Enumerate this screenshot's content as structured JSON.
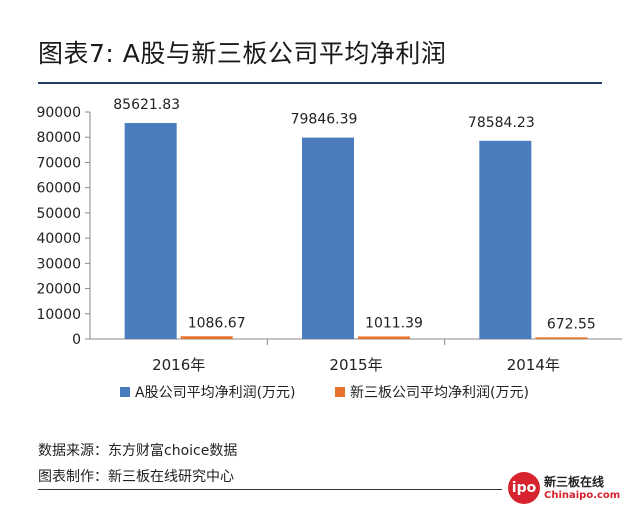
{
  "header": {
    "title": "图表7: A股与新三板公司平均净利润"
  },
  "chart_data": {
    "type": "bar",
    "categories": [
      "2016年",
      "2015年",
      "2014年"
    ],
    "series": [
      {
        "name": "A股公司平均净利润(万元)",
        "values": [
          85621.83,
          79846.39,
          78584.23
        ],
        "color": "#4a7bbd"
      },
      {
        "name": "新三板公司平均净利润(万元)",
        "values": [
          1086.67,
          1011.39,
          672.55
        ],
        "color": "#e8732a"
      }
    ],
    "data_labels": [
      [
        "85621.83",
        "79846.39",
        "78584.23"
      ],
      [
        "1086.67",
        "1011.39",
        "672.55"
      ]
    ],
    "ylim": [
      0,
      90000
    ],
    "yticks": [
      0,
      10000,
      20000,
      30000,
      40000,
      50000,
      60000,
      70000,
      80000,
      90000
    ],
    "legend_position": "bottom",
    "grid": false
  },
  "footer": {
    "source": "数据来源：东方财富choice数据",
    "made_by": "图表制作：新三板在线研究中心"
  },
  "logo": {
    "badge": "ipo",
    "name_cn": "新三板在线",
    "name_en": "Chinaipo.com"
  }
}
